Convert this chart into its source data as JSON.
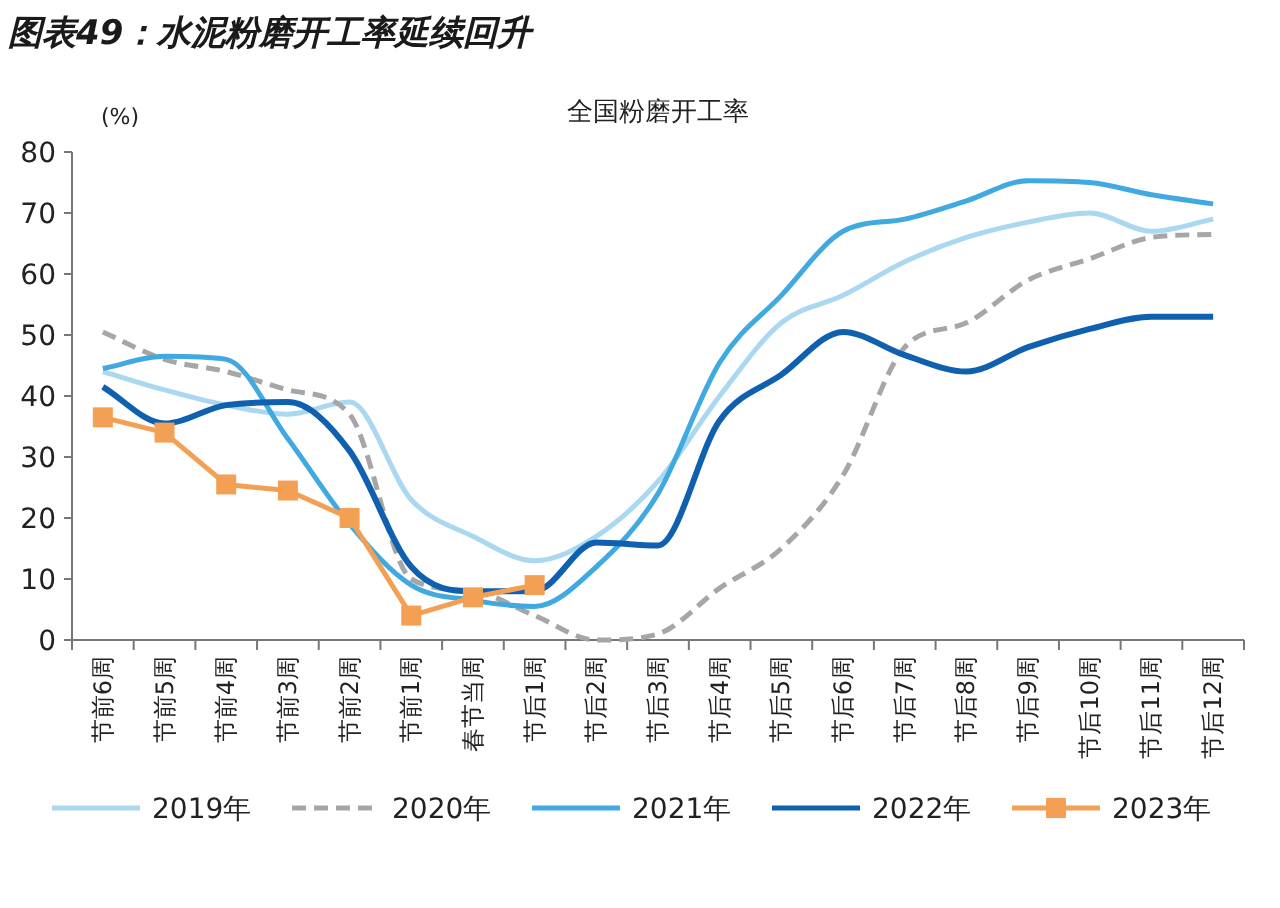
{
  "chart_data": {
    "type": "line",
    "title": "图表49：水泥粉磨开工率延续回升",
    "subtitle": "全国粉磨开工率",
    "ylabel": "(%)",
    "categories": [
      "节前6周",
      "节前5周",
      "节前4周",
      "节前3周",
      "节前2周",
      "节前1周",
      "春节当周",
      "节后1周",
      "节后2周",
      "节后3周",
      "节后4周",
      "节后5周",
      "节后6周",
      "节后7周",
      "节后8周",
      "节后9周",
      "节后10周",
      "节后11周",
      "节后12周"
    ],
    "series": [
      {
        "name": "2019年",
        "color": "#a9d8f0",
        "line_style": "solid",
        "marker": "none",
        "values": [
          44,
          41,
          38.5,
          37,
          39,
          23,
          17,
          13,
          17,
          26,
          40,
          52,
          56.5,
          62,
          66,
          68.5,
          70,
          67,
          69
        ]
      },
      {
        "name": "2020年",
        "color": "#a6a6a6",
        "line_style": "dashed",
        "marker": "none",
        "values": [
          50.5,
          46,
          44,
          41,
          37,
          10,
          8,
          4,
          0,
          1,
          8.5,
          15,
          27,
          48,
          52,
          59,
          62.5,
          66,
          66.5
        ]
      },
      {
        "name": "2021年",
        "color": "#3fa9e0",
        "line_style": "solid",
        "marker": "none",
        "values": [
          44.5,
          46.5,
          46,
          33,
          19,
          9,
          6.5,
          5.5,
          12,
          24,
          45.5,
          56.5,
          67,
          69,
          72,
          75.3,
          75,
          73,
          71.5
        ]
      },
      {
        "name": "2022年",
        "color": "#1060b0",
        "line_style": "solid",
        "marker": "none",
        "values": [
          41.5,
          35.5,
          38.5,
          39,
          31,
          12,
          8,
          8,
          16,
          15.5,
          36,
          43.5,
          50.5,
          46.7,
          44,
          48,
          51,
          53,
          53
        ]
      },
      {
        "name": "2023年",
        "color": "#f4a054",
        "line_style": "solid",
        "marker": "square",
        "values": [
          36.5,
          34,
          25.5,
          24.5,
          20,
          4,
          7,
          9,
          null,
          null,
          null,
          null,
          null,
          null,
          null,
          null,
          null,
          null,
          null
        ]
      }
    ],
    "ylim": [
      0,
      80
    ],
    "yticks": [
      0,
      10,
      20,
      30,
      40,
      50,
      60,
      70,
      80
    ],
    "grid": false,
    "legend": "bottom"
  }
}
